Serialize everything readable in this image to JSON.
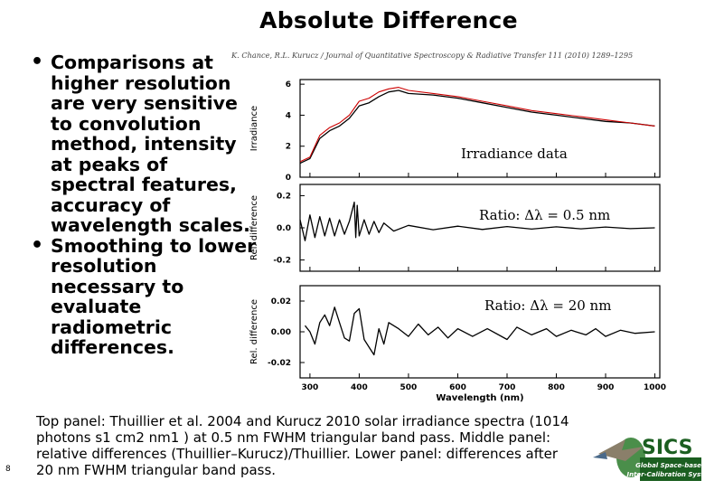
{
  "slide": {
    "title": "Absolute Difference",
    "bullets": [
      "Comparisons at higher resolution are very sensitive to convolution method, intensity at peaks of spectral features, accuracy of wavelength scales.",
      "Smoothing to lower resolution necessary to evaluate radiometric differences."
    ],
    "citation": "K. Chance, R.L. Kurucz / Journal of Quantitative Spectroscopy & Radiative Transfer 111 (2010) 1289–1295",
    "caption": "Top panel: Thuillier et al. 2004 and Kurucz 2010 solar irradiance spectra (1014 photons s1 cm2 nm1 ) at 0.5 nm FWHM triangular band pass. Middle panel: relative differences (Thuillier–Kurucz)/Thuillier. Lower panel: differences after 20 nm FWHM triangular band pass.",
    "page_number": "8"
  },
  "logo": {
    "text": "SICS",
    "subtitle_line1": "Global Space-based",
    "subtitle_line2": "Inter-Calibration System"
  },
  "figure": {
    "panel_labels": [
      "Irradiance data",
      "Ratio: Δλ = 0.5 nm",
      "Ratio: Δλ = 20 nm"
    ]
  },
  "chart_data": {
    "type": "line",
    "xlabel": "Wavelength (nm)",
    "xlim": [
      280,
      1010
    ],
    "x_ticks": [
      "300",
      "400",
      "500",
      "600",
      "700",
      "800",
      "900",
      "1000"
    ],
    "panels": [
      {
        "name": "irradiance",
        "ylabel": "Irradiance",
        "label": "Irradiance data",
        "ylim": [
          0,
          6.3
        ],
        "y_ticks": [
          "0",
          "2",
          "4",
          "6"
        ],
        "y_tick_values": [
          0,
          2,
          4,
          6
        ],
        "series": [
          {
            "color": "#000000",
            "x": [
              280,
              300,
              320,
              340,
              360,
              380,
              400,
              420,
              440,
              460,
              480,
              500,
              550,
              600,
              650,
              700,
              750,
              800,
              850,
              900,
              950,
              1000
            ],
            "y": [
              0.9,
              1.2,
              2.5,
              3.0,
              3.3,
              3.8,
              4.6,
              4.8,
              5.2,
              5.5,
              5.6,
              5.4,
              5.3,
              5.1,
              4.8,
              4.5,
              4.2,
              4.0,
              3.8,
              3.6,
              3.5,
              3.3
            ]
          },
          {
            "color": "#cc0000",
            "x": [
              280,
              300,
              320,
              340,
              360,
              380,
              400,
              420,
              440,
              460,
              480,
              500,
              550,
              600,
              650,
              700,
              750,
              800,
              850,
              900,
              950,
              1000
            ],
            "y": [
              1.0,
              1.3,
              2.7,
              3.2,
              3.5,
              4.0,
              4.9,
              5.1,
              5.5,
              5.7,
              5.8,
              5.6,
              5.4,
              5.2,
              4.9,
              4.6,
              4.3,
              4.1,
              3.9,
              3.7,
              3.5,
              3.3
            ]
          }
        ]
      },
      {
        "name": "ratio-0.5nm",
        "ylabel": "Rel. difference",
        "label": "Ratio: Δλ = 0.5 nm",
        "ylim": [
          -0.27,
          0.27
        ],
        "y_ticks": [
          "0.2",
          "0.0",
          "-0.2"
        ],
        "y_tick_values": [
          0.2,
          0.0,
          -0.2
        ],
        "series": [
          {
            "color": "#000000",
            "x": [
              280,
              290,
              300,
              310,
              320,
              330,
              340,
              350,
              360,
              370,
              380,
              390,
              393,
              396,
              400,
              410,
              420,
              430,
              440,
              450,
              470,
              500,
              550,
              600,
              650,
              700,
              750,
              800,
              850,
              900,
              950,
              1000
            ],
            "y": [
              0.05,
              -0.08,
              0.08,
              -0.06,
              0.07,
              -0.05,
              0.06,
              -0.05,
              0.05,
              -0.04,
              0.04,
              0.16,
              -0.06,
              0.14,
              -0.05,
              0.05,
              -0.04,
              0.04,
              -0.03,
              0.03,
              -0.02,
              0.015,
              -0.012,
              0.01,
              -0.01,
              0.008,
              -0.008,
              0.006,
              -0.006,
              0.005,
              -0.005,
              0.0
            ]
          }
        ]
      },
      {
        "name": "ratio-20nm",
        "ylabel": "Rel. difference",
        "label": "Ratio: Δλ = 20 nm",
        "ylim": [
          -0.03,
          0.03
        ],
        "y_ticks": [
          "0.02",
          "0.00",
          "-0.02"
        ],
        "y_tick_values": [
          0.02,
          0.0,
          -0.02
        ],
        "series": [
          {
            "color": "#000000",
            "x": [
              290,
              300,
              310,
              320,
              330,
              340,
              350,
              360,
              370,
              380,
              390,
              400,
              410,
              420,
              430,
              440,
              450,
              460,
              480,
              500,
              520,
              540,
              560,
              580,
              600,
              630,
              660,
              700,
              720,
              750,
              780,
              800,
              830,
              860,
              880,
              900,
              930,
              960,
              1000
            ],
            "y": [
              0.004,
              0.0,
              -0.008,
              0.006,
              0.011,
              0.004,
              0.016,
              0.006,
              -0.004,
              -0.006,
              0.012,
              0.015,
              -0.005,
              -0.01,
              -0.015,
              0.002,
              -0.008,
              0.006,
              0.002,
              -0.003,
              0.005,
              -0.002,
              0.003,
              -0.004,
              0.002,
              -0.003,
              0.002,
              -0.005,
              0.003,
              -0.002,
              0.002,
              -0.003,
              0.001,
              -0.002,
              0.002,
              -0.003,
              0.001,
              -0.001,
              0.0
            ]
          }
        ]
      }
    ]
  }
}
